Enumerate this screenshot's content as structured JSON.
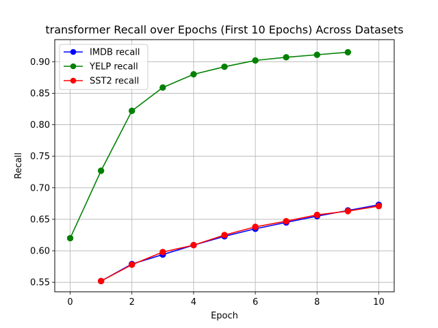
{
  "chart_data": {
    "type": "line",
    "title": "transformer Recall over Epochs (First 10 Epochs) Across Datasets",
    "xlabel": "Epoch",
    "ylabel": "Recall",
    "xlim": [
      -0.5,
      10.5
    ],
    "ylim": [
      0.535,
      0.935
    ],
    "xticks": [
      0,
      2,
      4,
      6,
      8,
      10
    ],
    "xtick_labels": [
      "0",
      "2",
      "4",
      "6",
      "8",
      "10"
    ],
    "yticks": [
      0.55,
      0.6,
      0.65,
      0.7,
      0.75,
      0.8,
      0.85,
      0.9
    ],
    "ytick_labels": [
      "0.55",
      "0.60",
      "0.65",
      "0.70",
      "0.75",
      "0.80",
      "0.85",
      "0.90"
    ],
    "grid": true,
    "legend_position": "top-left",
    "series": [
      {
        "name": "IMDB recall",
        "color": "#0000ff",
        "x": [
          1,
          2,
          3,
          4,
          5,
          6,
          7,
          8,
          9,
          10
        ],
        "values": [
          0.552,
          0.579,
          0.594,
          0.609,
          0.623,
          0.635,
          0.645,
          0.655,
          0.664,
          0.673
        ]
      },
      {
        "name": "YELP recall",
        "color": "#008000",
        "x": [
          0,
          1,
          2,
          3,
          4,
          5,
          6,
          7,
          8,
          9
        ],
        "values": [
          0.62,
          0.727,
          0.822,
          0.859,
          0.88,
          0.892,
          0.902,
          0.907,
          0.911,
          0.915
        ]
      },
      {
        "name": "SST2 recall",
        "color": "#ff0000",
        "x": [
          1,
          2,
          3,
          4,
          5,
          6,
          7,
          8,
          9,
          10
        ],
        "values": [
          0.552,
          0.578,
          0.598,
          0.609,
          0.625,
          0.638,
          0.647,
          0.657,
          0.663,
          0.671
        ]
      }
    ]
  }
}
